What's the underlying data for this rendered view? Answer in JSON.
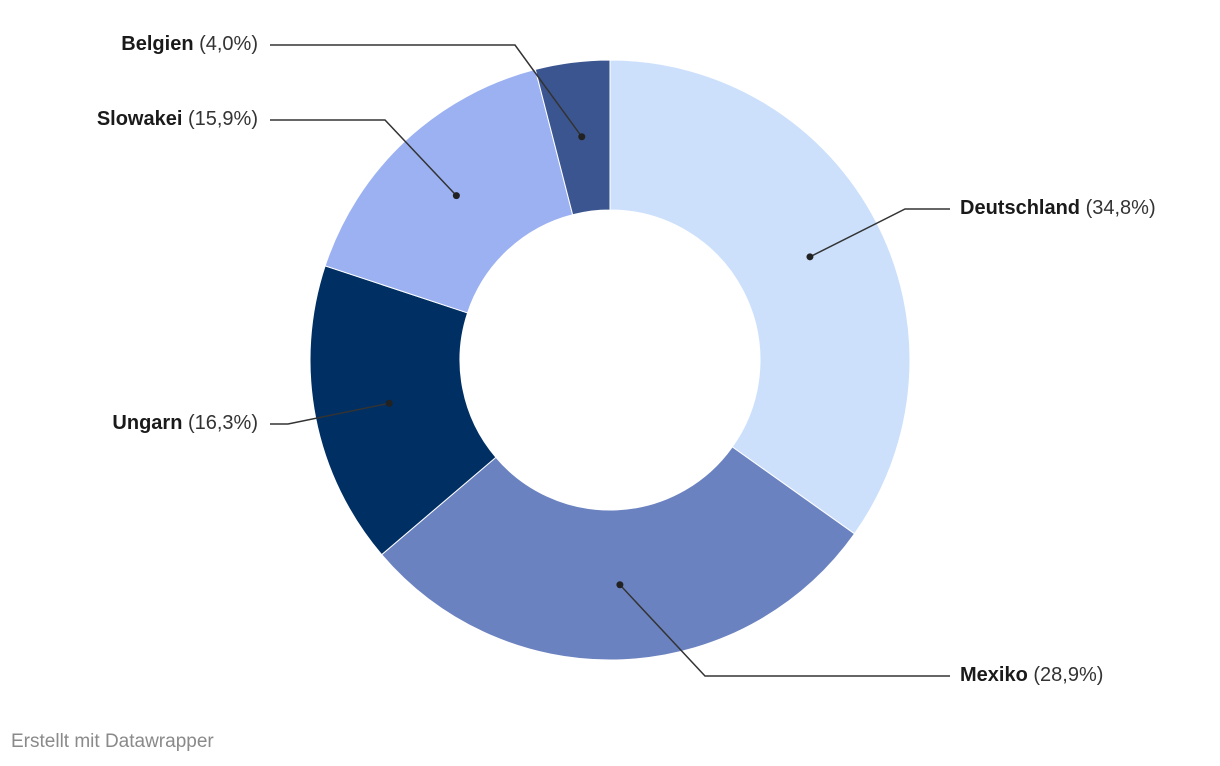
{
  "chart_data": {
    "type": "pie",
    "donut": true,
    "title": "",
    "slices": [
      {
        "label": "Deutschland",
        "value": 34.8,
        "value_text": "(34,8%)",
        "color": "#cce0fc"
      },
      {
        "label": "Mexiko",
        "value": 28.9,
        "value_text": "(28,9%)",
        "color": "#6b82c1"
      },
      {
        "label": "Ungarn",
        "value": 16.3,
        "value_text": "(16,3%)",
        "color": "#002f63"
      },
      {
        "label": "Slowakei",
        "value": 15.9,
        "value_text": "(15,9%)",
        "color": "#9bb1f2"
      },
      {
        "label": "Belgien",
        "value": 4.0,
        "value_text": "(4,0%)",
        "color": "#3b5590"
      }
    ],
    "label_style": "external labels with leader lines"
  },
  "footer": {
    "credit": "Erstellt mit Datawrapper"
  }
}
